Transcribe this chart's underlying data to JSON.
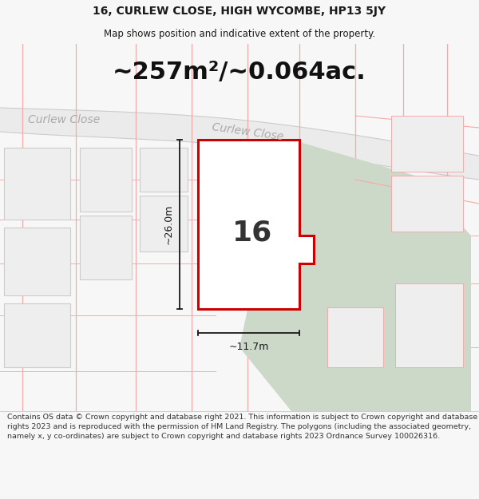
{
  "title": "16, CURLEW CLOSE, HIGH WYCOMBE, HP13 5JY",
  "subtitle": "Map shows position and indicative extent of the property.",
  "area_label": "~257m²/~0.064ac.",
  "property_number": "16",
  "road_label_left": "Curlew Close",
  "road_label_center": "Curlew Close",
  "dim_vertical": "~26.0m",
  "dim_horizontal": "~11.7m",
  "footer": "Contains OS data © Crown copyright and database right 2021. This information is subject to Crown copyright and database rights 2023 and is reproduced with the permission of HM Land Registry. The polygons (including the associated geometry, namely x, y co-ordinates) are subject to Crown copyright and database rights 2023 Ordnance Survey 100026316.",
  "bg_color": "#f7f7f7",
  "map_bg": "#ffffff",
  "property_fill": "#ffffff",
  "property_edge": "#cc0000",
  "neighbor_fill": "#eeeeee",
  "neighbor_edge": "#f5aaaa",
  "green_fill": "#ccd9c8",
  "road_line_color": "#f5aaaa",
  "road_band_color": "#ebebeb",
  "title_fontsize": 10,
  "subtitle_fontsize": 8.5,
  "area_fontsize": 22,
  "road_label_fontsize": 10,
  "footer_fontsize": 6.8
}
